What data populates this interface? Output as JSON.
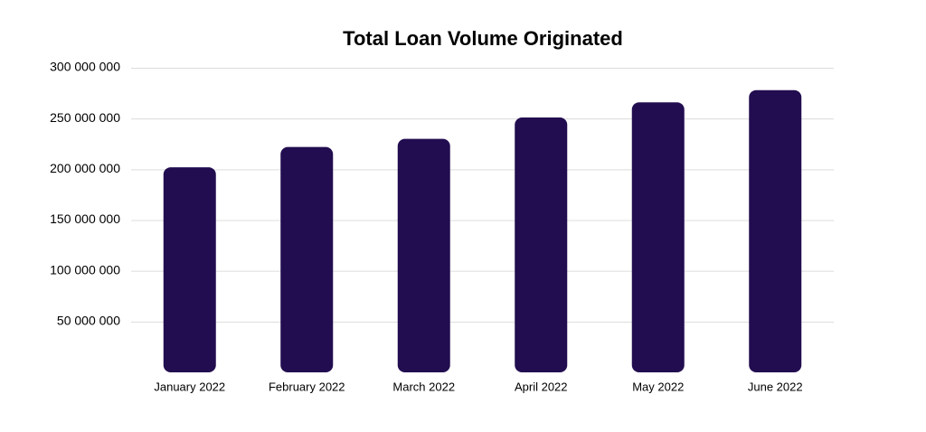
{
  "chart_data": {
    "type": "bar",
    "title": "Total Loan Volume Originated",
    "categories": [
      "January 2022",
      "February 2022",
      "March 2022",
      "April 2022",
      "May 2022",
      "June 2022"
    ],
    "values": [
      202000000,
      222000000,
      230000000,
      251000000,
      266000000,
      278000000
    ],
    "color": "#220d50",
    "ylim": [
      0,
      300000000
    ],
    "yticks": [
      {
        "value": 50000000,
        "label": "50 000 000"
      },
      {
        "value": 100000000,
        "label": "100 000 000"
      },
      {
        "value": 150000000,
        "label": "150 000 000"
      },
      {
        "value": 200000000,
        "label": "200 000 000"
      },
      {
        "value": 250000000,
        "label": "250 000 000"
      },
      {
        "value": 300000000,
        "label": "300 000 000"
      }
    ],
    "grid": true
  }
}
